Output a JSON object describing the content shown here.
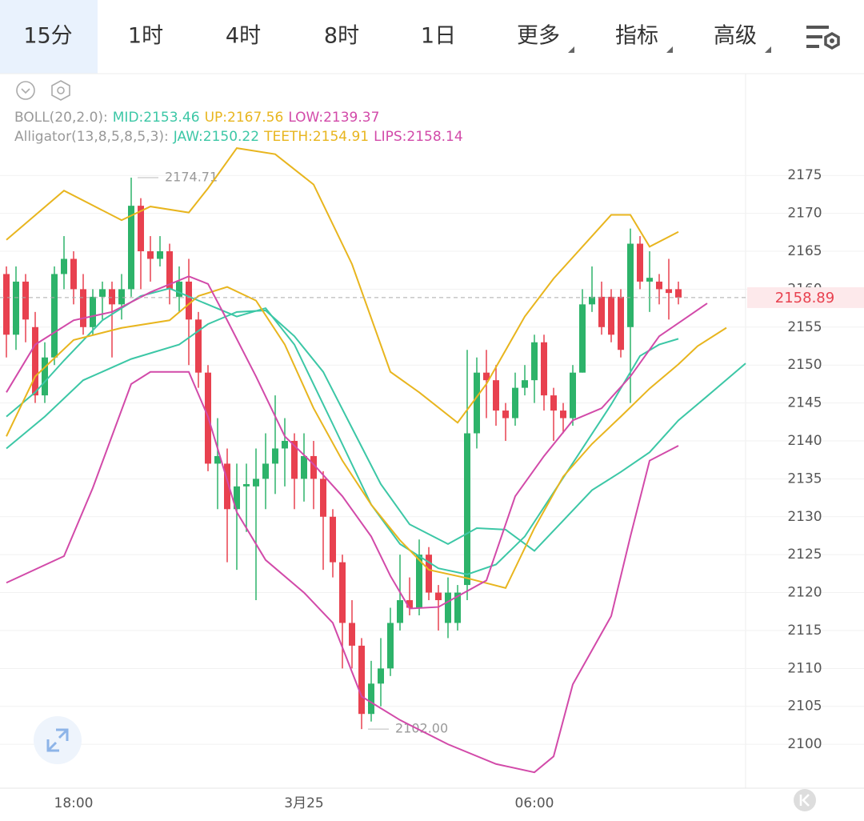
{
  "toolbar": {
    "tabs": [
      "15分",
      "1时",
      "4时",
      "8时",
      "1日",
      "更多",
      "指标",
      "高级"
    ]
  },
  "chart_data": {
    "type": "candlestick",
    "categories": [
      null,
      null,
      null,
      null,
      null,
      null,
      null,
      "18:00",
      null,
      null,
      null,
      null,
      null,
      null,
      null,
      null,
      null,
      null,
      null,
      null,
      null,
      null,
      null,
      null,
      null,
      null,
      null,
      null,
      null,
      null,
      null,
      "3月25",
      null,
      null,
      null,
      null,
      null,
      null,
      null,
      null,
      null,
      null,
      null,
      null,
      null,
      null,
      null,
      null,
      null,
      null,
      null,
      null,
      null,
      null,
      null,
      "06:00",
      null,
      null,
      null,
      null,
      null,
      null,
      null,
      null,
      null,
      null,
      null,
      null,
      null,
      null,
      null,
      null,
      null,
      null,
      null,
      null,
      null,
      null
    ],
    "open": [
      2162,
      2154,
      2161,
      2155,
      2146,
      2151,
      2162,
      2164,
      2160,
      2155,
      2159,
      2160,
      2158,
      2160,
      2171,
      2165,
      2164,
      2165,
      2159,
      2161,
      2156,
      2149,
      2137,
      2137,
      2131,
      2134,
      2134,
      2135,
      2137,
      2139,
      2140,
      2135,
      2138,
      2135,
      2130,
      2124,
      2116,
      2113,
      2104,
      2108,
      2110,
      2116,
      2119,
      2118,
      2125,
      2120,
      2116,
      2116,
      2121,
      2141,
      2149,
      2148,
      2144,
      2143,
      2147,
      2148,
      2153,
      2146,
      2144,
      2143,
      2149,
      2158,
      2159,
      2159,
      2159,
      2155,
      2166,
      2161,
      2161,
      2160,
      2160,
      null,
      null,
      null,
      null,
      null,
      null,
      null
    ],
    "high": [
      2163,
      2163,
      2162,
      2157,
      2153,
      2163,
      2167,
      2165,
      2162,
      2160,
      2161,
      2161,
      2162,
      2174.71,
      2172,
      2167,
      2167,
      2166,
      2163,
      2164,
      2157,
      2150,
      2143,
      2139,
      2137,
      2137,
      2139,
      2141,
      2146,
      2143,
      2141,
      2141,
      2140,
      2136,
      2131,
      2125,
      2119,
      2114,
      2111,
      2114,
      2118,
      2125,
      2122,
      2127,
      2126,
      2121,
      2122,
      2121,
      2152,
      2151,
      2152,
      2150,
      2145,
      2149,
      2150,
      2154,
      2154,
      2147,
      2145,
      2150,
      2160,
      2163,
      2161,
      2160,
      2160,
      2168,
      2167,
      2165,
      2162,
      2164,
      2161,
      null,
      null,
      null,
      null,
      null,
      null,
      null
    ],
    "low": [
      2151,
      2152,
      2153,
      2145,
      2145,
      2150,
      2160,
      2158,
      2154,
      2154,
      2156,
      2151,
      2156,
      2159,
      2160,
      2161,
      2163,
      2158,
      2157,
      2150,
      2147,
      2136,
      2131,
      2124,
      2123,
      2128,
      2119,
      2131,
      2133,
      2134,
      2131,
      2132,
      2131,
      2123,
      2122,
      2110,
      2110,
      2102,
      2103,
      2105,
      2109,
      2115,
      2117,
      2117,
      2119,
      2115,
      2114,
      2115,
      2119,
      2139,
      2143,
      2142,
      2140,
      2142,
      2146,
      2145,
      2144,
      2140,
      2141,
      2142,
      2149,
      2157,
      2154,
      2153,
      2151,
      2145,
      2160,
      2157,
      2158,
      2156,
      2158,
      null,
      null,
      null,
      null,
      null,
      null,
      null
    ],
    "close": [
      2154,
      2161,
      2156,
      2146,
      2151,
      2162,
      2164,
      2160,
      2155,
      2159,
      2160,
      2158,
      2160,
      2171,
      2165,
      2164,
      2165,
      2160,
      2161,
      2156,
      2149,
      2137,
      2138,
      2131,
      2134,
      2134.3,
      2135,
      2137,
      2139,
      2140,
      2135,
      2138,
      2135,
      2130,
      2124,
      2116,
      2113,
      2104,
      2108,
      2110,
      2116,
      2119,
      2118,
      2125,
      2120,
      2119,
      2120,
      2120,
      2141,
      2149,
      2148,
      2144,
      2143,
      2147,
      2148,
      2153,
      2146,
      2144,
      2143,
      2149,
      2158,
      2159,
      2155,
      2154,
      2152,
      2166,
      2161,
      2161.5,
      2160,
      2159.5,
      2158.89,
      null,
      null,
      null,
      null,
      null,
      null,
      null
    ],
    "low_labels": {
      "37": "2102.00"
    },
    "up_color": "#2db36a",
    "down_color": "#e8414f",
    "ylim": [
      2094,
      2188
    ],
    "yticks": [
      2100,
      2105,
      2110,
      2115,
      2120,
      2125,
      2130,
      2135,
      2140,
      2145,
      2150,
      2155,
      2160,
      2165,
      2170,
      2175
    ],
    "grid": true,
    "overlays": [
      {
        "title": "BOLL(20,2.0):",
        "series": [
          {
            "name": "MID:2153.46",
            "color": "#3cc7a6",
            "x": [
              0,
              3,
              6,
              10,
              14,
              17,
              20,
              24,
              27,
              30,
              34,
              38,
              41,
              45,
              48,
              51,
              54,
              57,
              60,
              63,
              66,
              68,
              70
            ],
            "values": [
              2143.2,
              2146.4,
              2150.6,
              2155.9,
              2159.1,
              2160.1,
              2158.5,
              2156.4,
              2157.5,
              2152.7,
              2142.2,
              2131.6,
              2126.4,
              2123.2,
              2122.4,
              2123.7,
              2127.4,
              2133.2,
              2139.0,
              2144.8,
              2151.2,
              2152.7,
              2153.46
            ]
          },
          {
            "name": "UP:2167.56",
            "color": "#e8b51e",
            "x": [
              0,
              6,
              12,
              15,
              19,
              21,
              24,
              28,
              32,
              36,
              40,
              43,
              47,
              50,
              54,
              57,
              61,
              63,
              65,
              67,
              70
            ],
            "values": [
              2166.5,
              2173.0,
              2169.1,
              2170.9,
              2170.1,
              2173.3,
              2178.6,
              2177.8,
              2173.8,
              2163.3,
              2149.1,
              2146.4,
              2142.4,
              2147.5,
              2156.4,
              2161.4,
              2167.0,
              2169.8,
              2169.8,
              2165.6,
              2167.56
            ]
          },
          {
            "name": "LOW:2139.37",
            "color": "#d24aa9",
            "x": [
              0,
              6,
              9,
              13,
              15,
              19,
              21,
              24,
              27,
              31,
              34,
              37,
              41,
              46,
              51,
              55,
              57,
              59,
              63,
              65,
              67,
              70
            ],
            "values": [
              2121.3,
              2124.8,
              2133.8,
              2147.5,
              2149.1,
              2149.1,
              2143.2,
              2130.6,
              2124.3,
              2120.0,
              2116.0,
              2106.3,
              2103.2,
              2100.0,
              2097.4,
              2096.3,
              2098.4,
              2107.9,
              2116.9,
              2127.4,
              2137.4,
              2139.37
            ]
          }
        ]
      },
      {
        "title": "Alligator(13,8,5,8,5,3):",
        "series": [
          {
            "name": "JAW:2150.22",
            "color": "#3cc7a6",
            "x": [
              0,
              4,
              8,
              13,
              18,
              21,
              24,
              27,
              30,
              33,
              36,
              39,
              42,
              46,
              49,
              52,
              55,
              58,
              61,
              64,
              67,
              70,
              73,
              77
            ],
            "values": [
              2139.0,
              2143.2,
              2148.0,
              2150.8,
              2152.7,
              2155.4,
              2157.0,
              2157.2,
              2153.8,
              2149.1,
              2141.7,
              2134.3,
              2129.0,
              2126.4,
              2128.5,
              2128.3,
              2125.5,
              2129.5,
              2133.5,
              2135.9,
              2138.5,
              2142.7,
              2145.9,
              2150.22
            ]
          },
          {
            "name": "TEETH:2154.91",
            "color": "#e8b51e",
            "x": [
              0,
              3,
              7,
              12,
              17,
              20,
              23,
              26,
              29,
              32,
              35,
              38,
              41,
              44,
              48,
              52,
              55,
              58,
              61,
              64,
              67,
              70,
              72,
              75
            ],
            "values": [
              2140.6,
              2148.5,
              2153.3,
              2154.9,
              2155.9,
              2159.1,
              2160.3,
              2158.5,
              2152.7,
              2144.3,
              2137.4,
              2131.6,
              2126.9,
              2123.0,
              2121.9,
              2120.6,
              2128.5,
              2135.3,
              2139.6,
              2143.2,
              2146.9,
              2150.1,
              2152.5,
              2154.91
            ]
          },
          {
            "name": "LIPS:2158.14",
            "color": "#d24aa9",
            "x": [
              0,
              3,
              7,
              11,
              15,
              19,
              21,
              23,
              26,
              29,
              32,
              35,
              38,
              40,
              42,
              45,
              47,
              50,
              53,
              56,
              59,
              62,
              65,
              68,
              71,
              73
            ],
            "values": [
              2146.4,
              2152.7,
              2155.9,
              2157.0,
              2159.6,
              2161.7,
              2160.7,
              2155.9,
              2148.5,
              2140.6,
              2136.9,
              2132.7,
              2127.4,
              2122.2,
              2117.9,
              2118.1,
              2119.5,
              2121.6,
              2132.7,
              2138.0,
              2142.7,
              2144.3,
              2148.5,
              2153.8,
              2156.4,
              2158.14
            ]
          }
        ]
      }
    ]
  }
}
